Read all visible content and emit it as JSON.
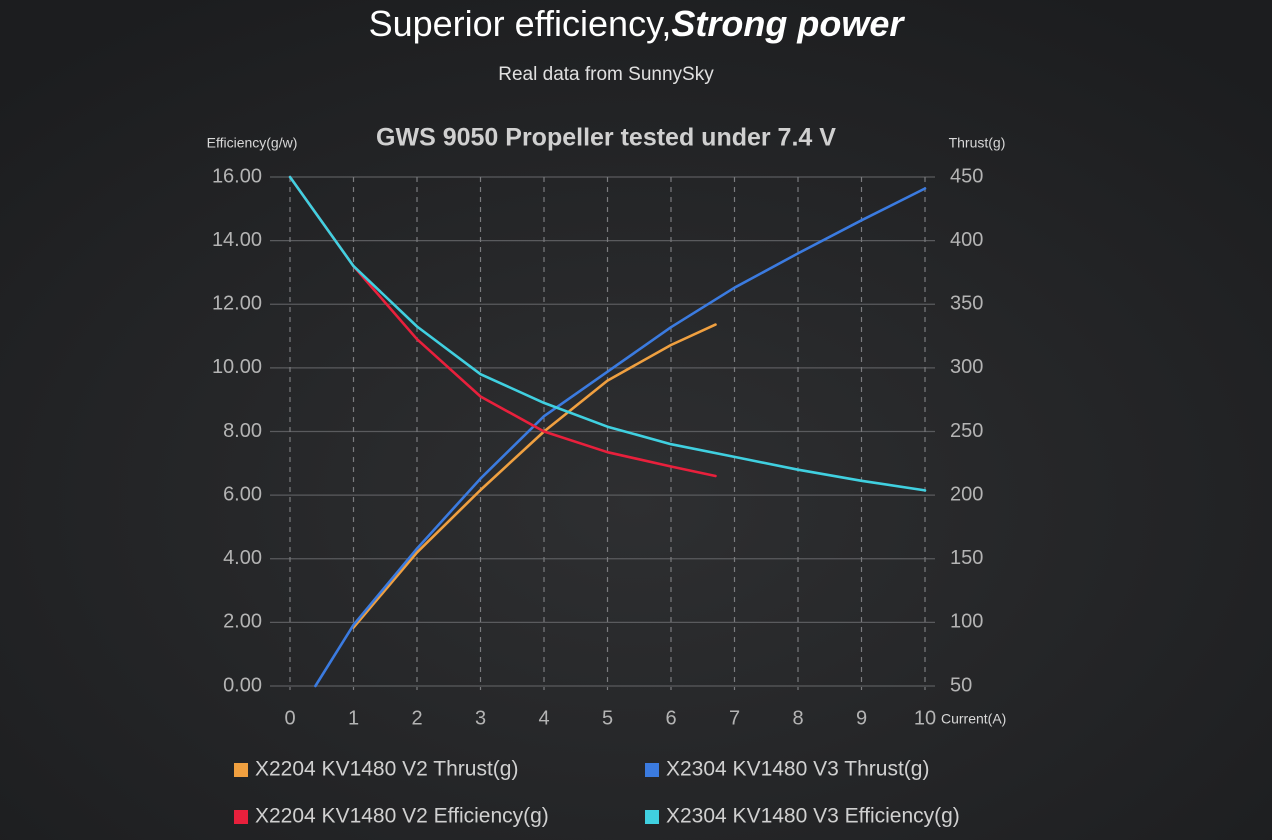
{
  "chart_data": {
    "type": "line",
    "title": "Superior efficiency,",
    "title_emphasis": "Strong power",
    "subtitle": "Real data from SunnySky",
    "chart_title": "GWS 9050 Propeller tested under 7.4 V",
    "ylabel": "Efficiency(g/w)",
    "y2label": "Thrust(g)",
    "xlabel": "Current(A)",
    "xlim": [
      0,
      10
    ],
    "xticks": [
      0,
      1,
      2,
      3,
      4,
      5,
      6,
      7,
      8,
      9,
      10
    ],
    "ylim": [
      0,
      16
    ],
    "yticks": [
      {
        "value": 0,
        "label": "0.00"
      },
      {
        "value": 2,
        "label": "2.00"
      },
      {
        "value": 4,
        "label": "4.00"
      },
      {
        "value": 6,
        "label": "6.00"
      },
      {
        "value": 8,
        "label": "8.00"
      },
      {
        "value": 10,
        "label": "10.00"
      },
      {
        "value": 12,
        "label": "12.00"
      },
      {
        "value": 14,
        "label": "14.00"
      },
      {
        "value": 16,
        "label": "16.00"
      }
    ],
    "y2lim": [
      50,
      450
    ],
    "y2ticks": [
      50,
      100,
      150,
      200,
      250,
      300,
      350,
      400,
      450
    ],
    "grid": true,
    "series": [
      {
        "name": "X2204 KV1480 V2 Thrust(g)",
        "color": "#f0a040",
        "axis": "y2",
        "x": [
          1,
          2,
          3,
          4,
          5,
          6,
          6.7
        ],
        "values": [
          96,
          155,
          204,
          250,
          290,
          318,
          334
        ]
      },
      {
        "name": "X2304 KV1480 V3 Thrust(g)",
        "color": "#3b7be0",
        "axis": "y2",
        "x": [
          0.4,
          1,
          2,
          3,
          4,
          5,
          6,
          7,
          8,
          9,
          10
        ],
        "values": [
          50,
          98,
          158,
          213,
          262,
          297,
          332,
          363,
          390,
          416,
          441
        ]
      },
      {
        "name": "X2204 KV1480 V2 Efficiency(g)",
        "color": "#e8203c",
        "x": [
          0,
          1,
          2,
          3,
          4,
          5,
          6,
          6.7
        ],
        "values": [
          16,
          13.2,
          10.9,
          9.1,
          8.0,
          7.35,
          6.9,
          6.6
        ]
      },
      {
        "name": "X2304 KV1480 V3 Efficiency(g)",
        "color": "#40d0e0",
        "x": [
          0,
          1,
          2,
          3,
          4,
          5,
          6,
          7,
          8,
          9,
          10
        ],
        "values": [
          16,
          13.2,
          11.3,
          9.8,
          8.9,
          8.15,
          7.6,
          7.2,
          6.8,
          6.45,
          6.15
        ]
      }
    ]
  }
}
